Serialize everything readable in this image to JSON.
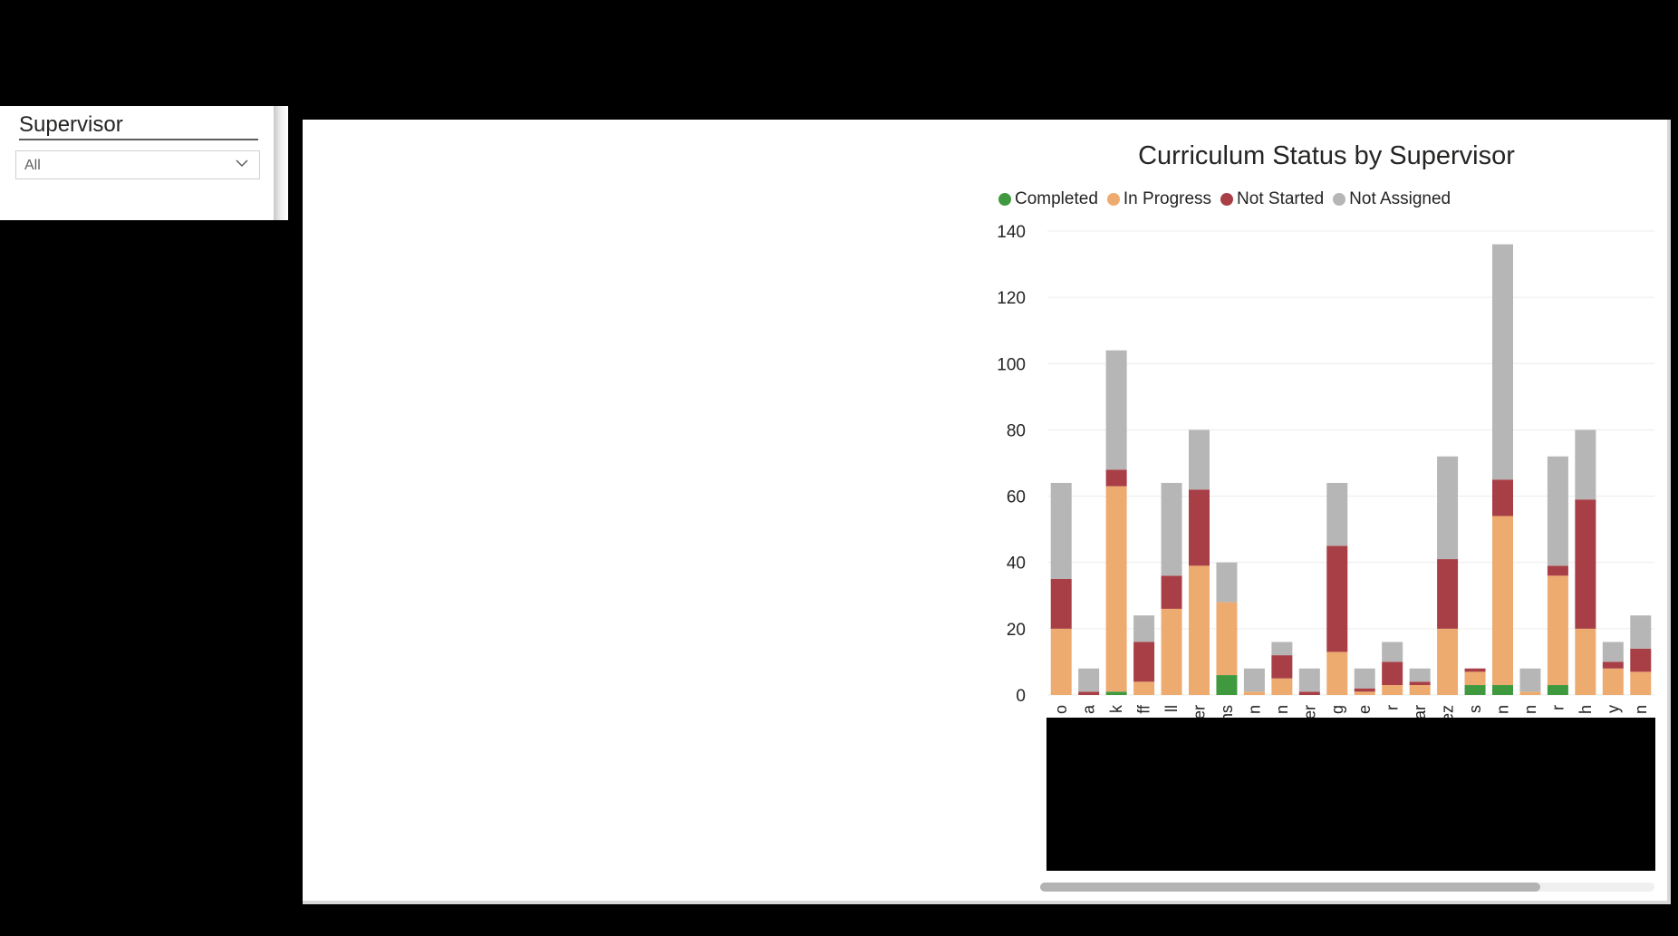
{
  "slicer": {
    "title": "Supervisor",
    "selected": "All"
  },
  "chart_data": {
    "type": "bar",
    "stacked": true,
    "title": "Curriculum Status by Supervisor",
    "legend_position": "top",
    "ylim": [
      0,
      140
    ],
    "yticks": [
      0,
      20,
      40,
      60,
      80,
      100,
      120,
      140
    ],
    "grid": true,
    "categories": [
      "o",
      "a",
      "k",
      "ff",
      "ll",
      "er",
      "ns",
      "n",
      "n",
      "er",
      "g",
      "e",
      "r",
      "ar",
      "ez",
      "s",
      "n",
      "n",
      "r",
      "h",
      "y",
      "n"
    ],
    "series": [
      {
        "name": "Completed",
        "color": "#3f9a3f",
        "values": [
          0,
          0,
          1,
          0,
          0,
          0,
          6,
          0,
          0,
          0,
          0,
          0,
          0,
          0,
          0,
          3,
          3,
          0,
          3,
          0,
          0,
          0
        ]
      },
      {
        "name": "In Progress",
        "color": "#eeab6f",
        "values": [
          20,
          0,
          62,
          4,
          26,
          39,
          22,
          1,
          5,
          0,
          13,
          1,
          3,
          3,
          20,
          4,
          51,
          1,
          33,
          20,
          8,
          7
        ]
      },
      {
        "name": "Not Started",
        "color": "#a93f46",
        "values": [
          15,
          1,
          5,
          12,
          10,
          23,
          0,
          0,
          7,
          1,
          32,
          1,
          7,
          1,
          21,
          1,
          11,
          0,
          3,
          39,
          2,
          7
        ]
      },
      {
        "name": "Not Assigned",
        "color": "#b6b6b6",
        "values": [
          29,
          7,
          36,
          8,
          28,
          18,
          12,
          7,
          4,
          7,
          19,
          6,
          6,
          4,
          31,
          0,
          71,
          7,
          33,
          21,
          6,
          10
        ]
      }
    ]
  }
}
